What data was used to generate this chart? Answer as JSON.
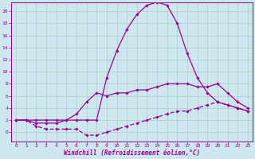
{
  "background_color": "#cce8ee",
  "grid_color": "#aacccc",
  "line_color": "#990099",
  "xlabel": "Windchill (Refroidissement éolien,°C)",
  "xlim": [
    -0.5,
    23.5
  ],
  "ylim": [
    -1.5,
    21.5
  ],
  "yticks": [
    0,
    2,
    4,
    6,
    8,
    10,
    12,
    14,
    16,
    18,
    20
  ],
  "xticks": [
    0,
    1,
    2,
    3,
    4,
    5,
    6,
    7,
    8,
    9,
    10,
    11,
    12,
    13,
    14,
    15,
    16,
    17,
    18,
    19,
    20,
    21,
    22,
    23
  ],
  "line_peak_x": [
    0,
    1,
    2,
    3,
    4,
    5,
    6,
    7,
    8,
    9,
    10,
    11,
    12,
    13,
    14,
    15,
    16,
    17,
    18,
    19,
    20,
    21,
    22,
    23
  ],
  "line_peak_y": [
    2,
    2,
    2,
    2,
    2,
    2,
    2,
    2,
    2,
    9,
    13.5,
    17,
    19.5,
    21,
    21.5,
    21,
    18,
    13,
    9,
    6.5,
    5,
    4.5,
    4,
    3.5
  ],
  "line_mid_x": [
    0,
    1,
    2,
    3,
    4,
    5,
    6,
    7,
    8,
    9,
    10,
    11,
    12,
    13,
    14,
    15,
    16,
    17,
    18,
    19,
    20,
    21,
    22,
    23
  ],
  "line_mid_y": [
    2,
    2,
    1.5,
    1.5,
    1.5,
    2,
    3,
    5,
    6.5,
    6,
    6.5,
    6.5,
    7,
    7,
    7.5,
    8,
    8,
    8,
    7.5,
    7.5,
    8,
    6.5,
    5,
    4
  ],
  "line_low_x": [
    0,
    1,
    2,
    3,
    4,
    5,
    6,
    7,
    8,
    9,
    10,
    11,
    12,
    13,
    14,
    15,
    16,
    17,
    18,
    19,
    20,
    21,
    22,
    23
  ],
  "line_low_y": [
    2,
    2,
    1,
    0.5,
    0.5,
    0.5,
    0.5,
    -0.5,
    -0.5,
    0,
    0.5,
    1,
    1.5,
    2,
    2.5,
    3,
    3.5,
    3.5,
    4,
    4.5,
    5,
    4.5,
    4,
    3.5
  ]
}
